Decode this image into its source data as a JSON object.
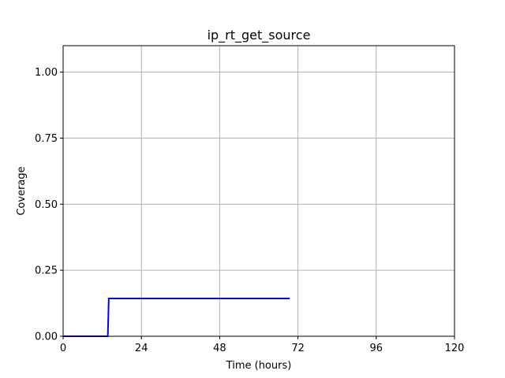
{
  "chart_data": {
    "type": "line",
    "title": "ip_rt_get_source",
    "xlabel": "Time (hours)",
    "ylabel": "Coverage",
    "xlim": [
      0,
      120
    ],
    "ylim": [
      0,
      1.1
    ],
    "x_ticks": [
      0,
      24,
      48,
      72,
      96,
      120
    ],
    "x_tick_labels": [
      "0",
      "24",
      "48",
      "72",
      "96",
      "120"
    ],
    "y_ticks": [
      0,
      0.25,
      0.5,
      0.75,
      1.0
    ],
    "y_tick_labels": [
      "0.00",
      "0.25",
      "0.50",
      "0.75",
      "1.00"
    ],
    "grid": true,
    "series": [
      {
        "color": "#0000ff",
        "x": [
          0,
          13.7,
          14.0,
          69.5
        ],
        "y": [
          0,
          0,
          0.143,
          0.143
        ]
      }
    ]
  }
}
